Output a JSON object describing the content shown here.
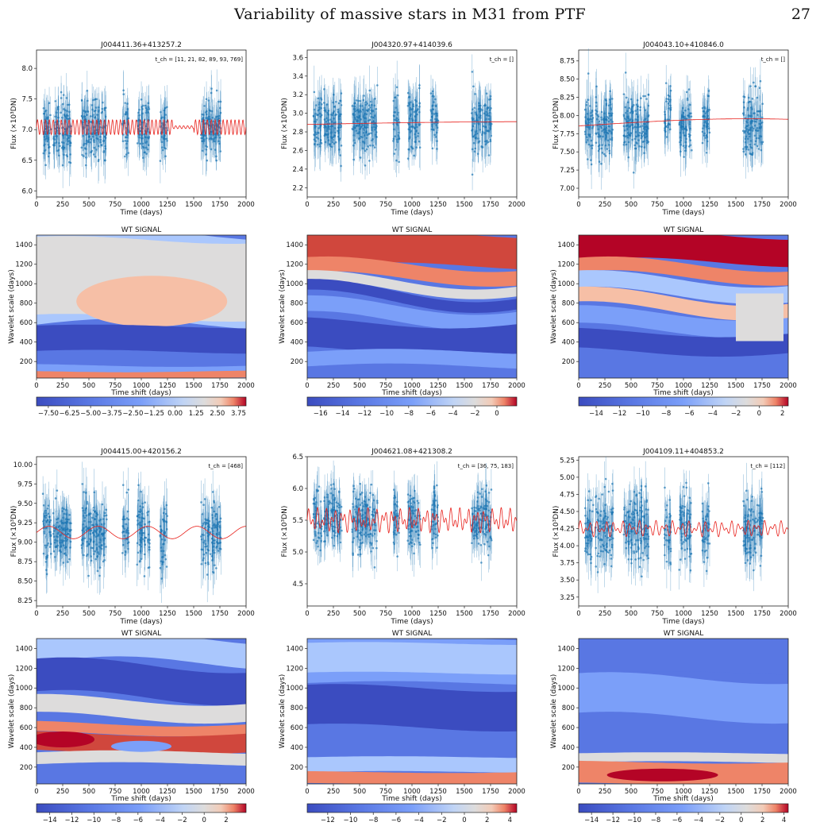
{
  "header": {
    "title": "Variability of massive stars in M31 from PTF",
    "page_number": "27"
  },
  "axis_labels": {
    "flux_y": "Flux (×10³DN)",
    "time_x": "Time (days)",
    "scale_y": "Wavelet scale (days)",
    "shift_x": "Time shift (days)",
    "wt_title": "WT SIGNAL"
  },
  "colors": {
    "data_points": "#1f77b4",
    "model_curve": "#e8211c"
  },
  "panels": [
    {
      "id": "J004411.36+413257.2",
      "tch": "t_ch = [11, 21, 82, 89, 93, 769]",
      "flux_ticks": [
        "6.0",
        "6.5",
        "7.0",
        "7.5",
        "8.0"
      ],
      "flux_range": [
        5.9,
        8.3
      ],
      "cb_ticks": [
        "−7.50",
        "−6.25",
        "−5.00",
        "−3.75",
        "−2.50",
        "−1.25",
        "0.00",
        "1.25",
        "2.50",
        "3.75"
      ],
      "cb_range": [
        -8.2,
        4.2
      ]
    },
    {
      "id": "J004320.97+414039.6",
      "tch": "t_ch = []",
      "flux_ticks": [
        "2.2",
        "2.4",
        "2.6",
        "2.8",
        "3.0",
        "3.2",
        "3.4",
        "3.6"
      ],
      "flux_range": [
        2.1,
        3.68
      ],
      "cb_ticks": [
        "−16",
        "−14",
        "−12",
        "−10",
        "−8",
        "−6",
        "−4",
        "−2",
        "0"
      ],
      "cb_range": [
        -17.2,
        1.8
      ]
    },
    {
      "id": "J004043.10+410846.0",
      "tch": "t_ch = []",
      "flux_ticks": [
        "7.00",
        "7.25",
        "7.50",
        "7.75",
        "8.00",
        "8.25",
        "8.50",
        "8.75"
      ],
      "flux_range": [
        6.88,
        8.9
      ],
      "cb_ticks": [
        "−14",
        "−12",
        "−10",
        "−8",
        "−6",
        "−4",
        "−2",
        "0",
        "2"
      ],
      "cb_range": [
        -15.5,
        2.5
      ]
    },
    {
      "id": "J004415.00+420156.2",
      "tch": "t_ch = [468]",
      "flux_ticks": [
        "8.25",
        "8.50",
        "8.75",
        "9.00",
        "9.25",
        "9.50",
        "9.75",
        "10.00"
      ],
      "flux_range": [
        8.18,
        10.1
      ],
      "cb_ticks": [
        "−14",
        "−12",
        "−10",
        "−8",
        "−6",
        "−4",
        "−2",
        "0",
        "2"
      ],
      "cb_range": [
        -15.2,
        3.8
      ]
    },
    {
      "id": "J004621.08+421308.2",
      "tch": "t_ch = [36, 75, 183]",
      "flux_ticks": [
        "4.5",
        "5.0",
        "5.5",
        "6.0",
        "6.5"
      ],
      "flux_range": [
        4.15,
        6.5
      ],
      "cb_ticks": [
        "−12",
        "−10",
        "−8",
        "−6",
        "−4",
        "−2",
        "0",
        "2",
        "4"
      ],
      "cb_range": [
        -13.8,
        4.6
      ]
    },
    {
      "id": "J004109.11+404853.2",
      "tch": "t_ch = [112]",
      "flux_ticks": [
        "3.25",
        "3.50",
        "3.75",
        "4.00",
        "4.25",
        "4.50",
        "4.75",
        "5.00",
        "5.25"
      ],
      "flux_range": [
        3.12,
        5.3
      ],
      "cb_ticks": [
        "−14",
        "−12",
        "−10",
        "−8",
        "−6",
        "−4",
        "−2",
        "0",
        "2",
        "4"
      ],
      "cb_range": [
        -15.2,
        4.4
      ]
    }
  ],
  "time_ticks": [
    "0",
    "250",
    "500",
    "750",
    "1000",
    "1250",
    "1500",
    "1750",
    "2000"
  ],
  "scale_ticks": [
    "200",
    "400",
    "600",
    "800",
    "1000",
    "1200",
    "1400"
  ]
}
